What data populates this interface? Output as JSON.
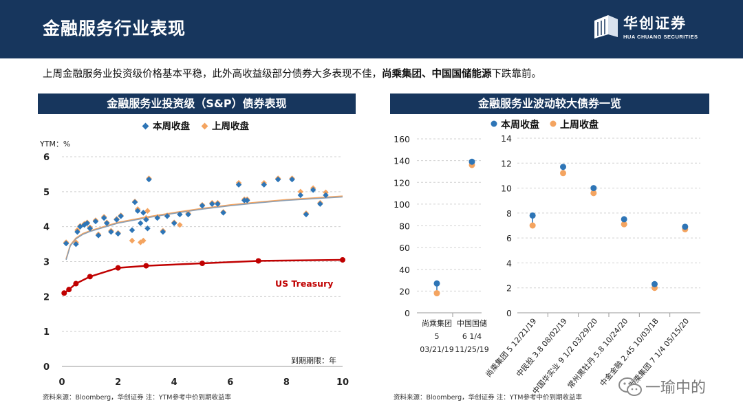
{
  "header": {
    "title": "金融服务行业表现",
    "brand_name": "华创证券",
    "brand_sub": "HUA CHUANG SECURITIES"
  },
  "summary": {
    "prefix": "上周金融服务业投资级价格基本平稳，此外高收益级部分债券大多表现不佳，",
    "bold1": "尚乘集团",
    "sep": "、",
    "bold2": "中国国储能源",
    "suffix": "下跌靠前。"
  },
  "left_panel": {
    "title": "金融服务业投资级（S&P）债券表现",
    "source": "资料来源：Bloomberg，华创证券     注：YTM参考中价到期收益率"
  },
  "right_panel": {
    "title": "金融服务业波动较大债券一览",
    "source": "资料来源：Bloomberg，华创证券     注：YTM参考中价到期收益率"
  },
  "watermark": {
    "text": "一瑜中的"
  },
  "colors": {
    "navy": "#17365d",
    "this_week_ig": "#2e75b6",
    "last_week": "#f4a460",
    "dot_blue": "#2e75b6",
    "treasury": "#c00000"
  },
  "chart_data": [
    {
      "type": "scatter",
      "title": "金融服务业投资级（S&P）债券表现",
      "ylabel": "YTM：%",
      "xlabel": "到期期限：年",
      "xlim": [
        0,
        10
      ],
      "ylim": [
        0,
        6
      ],
      "xticks": [
        "0",
        "2",
        "4",
        "6",
        "8",
        "10"
      ],
      "yticks": [
        "0",
        "1",
        "2",
        "3",
        "4",
        "5",
        "6"
      ],
      "legend": [
        "本周收盘",
        "上周收盘"
      ],
      "legend_position": "top-center",
      "series": [
        {
          "name": "本周收盘",
          "points": [
            [
              0.15,
              3.52
            ],
            [
              0.5,
              3.5
            ],
            [
              0.55,
              3.85
            ],
            [
              0.65,
              4.0
            ],
            [
              0.8,
              4.05
            ],
            [
              0.9,
              4.1
            ],
            [
              1.0,
              3.95
            ],
            [
              1.2,
              4.15
            ],
            [
              1.3,
              3.75
            ],
            [
              1.5,
              4.25
            ],
            [
              1.6,
              4.1
            ],
            [
              1.75,
              3.85
            ],
            [
              1.95,
              4.2
            ],
            [
              2.0,
              3.8
            ],
            [
              2.1,
              4.3
            ],
            [
              2.5,
              3.9
            ],
            [
              2.6,
              4.7
            ],
            [
              2.7,
              4.45
            ],
            [
              2.8,
              4.1
            ],
            [
              2.9,
              4.4
            ],
            [
              3.0,
              4.2
            ],
            [
              3.05,
              3.95
            ],
            [
              3.1,
              5.35
            ],
            [
              3.4,
              4.25
            ],
            [
              3.6,
              3.85
            ],
            [
              3.75,
              4.3
            ],
            [
              4.0,
              4.1
            ],
            [
              4.2,
              4.35
            ],
            [
              4.5,
              4.35
            ],
            [
              5.0,
              4.6
            ],
            [
              5.35,
              4.65
            ],
            [
              5.55,
              4.65
            ],
            [
              5.75,
              4.4
            ],
            [
              6.3,
              5.2
            ],
            [
              6.5,
              4.75
            ],
            [
              6.6,
              4.75
            ],
            [
              7.2,
              5.2
            ],
            [
              7.7,
              5.35
            ],
            [
              8.2,
              5.35
            ],
            [
              8.5,
              4.9
            ],
            [
              8.7,
              4.35
            ],
            [
              8.95,
              5.05
            ],
            [
              9.2,
              4.65
            ],
            [
              9.4,
              4.9
            ]
          ]
        },
        {
          "name": "上周收盘",
          "points": [
            [
              0.15,
              3.55
            ],
            [
              0.5,
              3.55
            ],
            [
              0.55,
              3.9
            ],
            [
              0.65,
              4.02
            ],
            [
              0.8,
              4.08
            ],
            [
              0.9,
              4.12
            ],
            [
              1.0,
              3.98
            ],
            [
              1.2,
              4.18
            ],
            [
              1.3,
              3.78
            ],
            [
              1.5,
              4.28
            ],
            [
              1.6,
              4.12
            ],
            [
              1.75,
              3.88
            ],
            [
              1.95,
              4.22
            ],
            [
              2.0,
              3.82
            ],
            [
              2.1,
              4.32
            ],
            [
              2.5,
              3.6
            ],
            [
              2.6,
              4.72
            ],
            [
              2.7,
              4.5
            ],
            [
              2.8,
              3.55
            ],
            [
              2.9,
              3.6
            ],
            [
              3.0,
              4.25
            ],
            [
              3.05,
              4.45
            ],
            [
              3.1,
              5.38
            ],
            [
              3.4,
              4.28
            ],
            [
              3.6,
              3.88
            ],
            [
              3.75,
              4.32
            ],
            [
              4.0,
              4.12
            ],
            [
              4.2,
              4.05
            ],
            [
              4.5,
              4.38
            ],
            [
              5.0,
              4.62
            ],
            [
              5.35,
              4.68
            ],
            [
              5.55,
              4.68
            ],
            [
              5.75,
              4.42
            ],
            [
              6.3,
              5.25
            ],
            [
              6.5,
              4.78
            ],
            [
              6.6,
              4.78
            ],
            [
              7.2,
              5.25
            ],
            [
              7.7,
              5.38
            ],
            [
              8.2,
              5.38
            ],
            [
              8.5,
              5.0
            ],
            [
              8.7,
              4.38
            ],
            [
              8.95,
              5.1
            ],
            [
              9.2,
              4.68
            ],
            [
              9.4,
              4.98
            ]
          ]
        },
        {
          "name": "本周收盘 趋势",
          "line": true,
          "points": [
            [
              0.15,
              3.05
            ],
            [
              0.3,
              3.45
            ],
            [
              0.5,
              3.65
            ],
            [
              0.75,
              3.78
            ],
            [
              1.0,
              3.86
            ],
            [
              1.5,
              3.98
            ],
            [
              2.0,
              4.1
            ],
            [
              3.0,
              4.25
            ],
            [
              4.0,
              4.38
            ],
            [
              5.0,
              4.5
            ],
            [
              6.0,
              4.6
            ],
            [
              7.0,
              4.68
            ],
            [
              8.0,
              4.75
            ],
            [
              9.0,
              4.8
            ],
            [
              10.0,
              4.85
            ]
          ]
        },
        {
          "name": "上周收盘 趋势",
          "line": true,
          "points": [
            [
              0.15,
              3.07
            ],
            [
              0.3,
              3.47
            ],
            [
              0.5,
              3.67
            ],
            [
              0.75,
              3.8
            ],
            [
              1.0,
              3.88
            ],
            [
              1.5,
              4.0
            ],
            [
              2.0,
              4.12
            ],
            [
              3.0,
              4.27
            ],
            [
              4.0,
              4.4
            ],
            [
              5.0,
              4.52
            ],
            [
              6.0,
              4.62
            ],
            [
              7.0,
              4.7
            ],
            [
              8.0,
              4.77
            ],
            [
              9.0,
              4.82
            ],
            [
              10.0,
              4.87
            ]
          ]
        },
        {
          "name": "US Treasury",
          "label": "US Treasury",
          "line": true,
          "markers": true,
          "points": [
            [
              0.08,
              2.1
            ],
            [
              0.25,
              2.2
            ],
            [
              0.5,
              2.37
            ],
            [
              1.0,
              2.57
            ],
            [
              2.0,
              2.82
            ],
            [
              3.0,
              2.88
            ],
            [
              5.0,
              2.95
            ],
            [
              7.0,
              3.02
            ],
            [
              10.0,
              3.05
            ]
          ]
        }
      ]
    },
    {
      "type": "scatter",
      "title": "金融服务业波动较大债券一览",
      "ylim": [
        0,
        160
      ],
      "yticks": [
        "0",
        "20",
        "40",
        "60",
        "80",
        "100",
        "120",
        "140",
        "160"
      ],
      "categories": [
        [
          "尚乘集团",
          "5",
          "03/21/19"
        ],
        [
          "中国国储",
          "6 1/4",
          "11/25/19"
        ]
      ],
      "legend": [
        "本周收盘",
        "上周收盘"
      ],
      "series": [
        {
          "name": "本周收盘",
          "values": [
            27,
            139
          ]
        },
        {
          "name": "上周收盘",
          "values": [
            18,
            136
          ]
        }
      ]
    },
    {
      "type": "scatter",
      "ylim": [
        0,
        14
      ],
      "yticks": [
        "0",
        "2",
        "4",
        "6",
        "8",
        "10",
        "12",
        "14"
      ],
      "categories": [
        "尚乘集团 5 12/21/19",
        "中民投  3.8 08/02/19",
        "中国华实业 9 1/2 03/29/20",
        "常州黑牡丹 5.8 10/24/20",
        "中金金融 2.45 10/03/18",
        "尚乘集团 7 1/4 05/15/20"
      ],
      "series": [
        {
          "name": "本周收盘",
          "values": [
            7.8,
            11.7,
            10.0,
            7.5,
            2.3,
            6.9
          ]
        },
        {
          "name": "上周收盘",
          "values": [
            7.0,
            11.2,
            9.6,
            7.1,
            2.0,
            6.7
          ]
        }
      ]
    }
  ]
}
